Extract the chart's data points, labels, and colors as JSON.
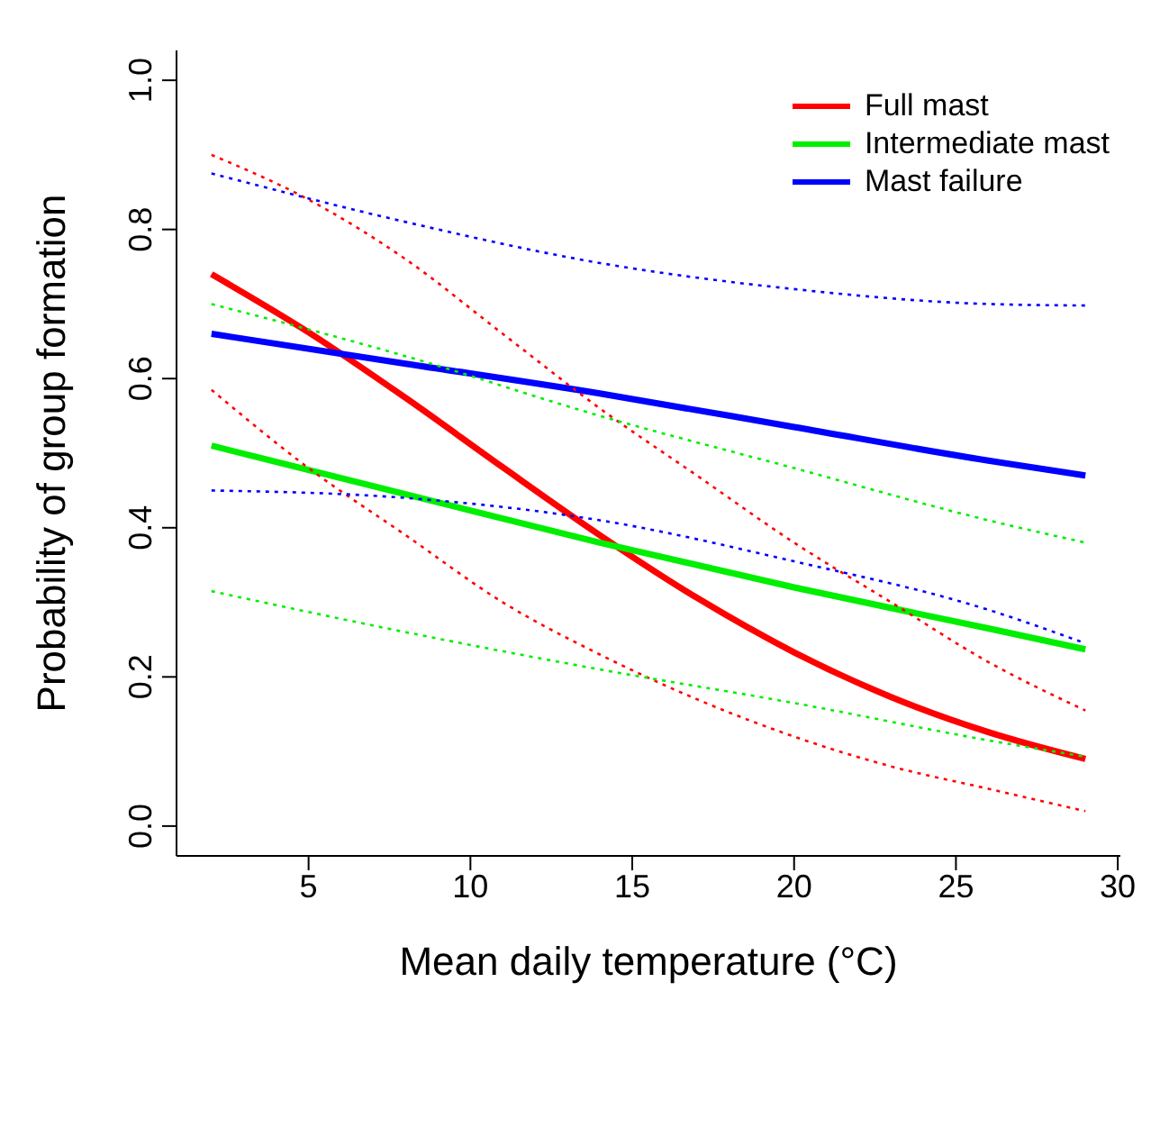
{
  "chart_data": {
    "type": "line",
    "xlabel": "Mean daily temperature (°C)",
    "ylabel": "Probability of group formation",
    "xlim": [
      0.92,
      30.08
    ],
    "xticks": [
      5,
      10,
      15,
      20,
      25,
      30
    ],
    "ylim": [
      -0.04,
      1.04
    ],
    "yticks": [
      {
        "value": 0,
        "label": "0.0"
      },
      0.2,
      0.4,
      0.6,
      0.8,
      {
        "value": 1,
        "label": "1.0"
      }
    ],
    "grid": false,
    "legend": "top right",
    "marker": "none",
    "series": [
      {
        "name": "Full mast",
        "color": "#ff0000",
        "line_style": "solid",
        "x": [
          2,
          5,
          8,
          11,
          14,
          17,
          20,
          23,
          26,
          29
        ],
        "values": [
          0.74,
          0.662,
          0.574,
          0.481,
          0.39,
          0.306,
          0.233,
          0.173,
          0.126,
          0.09
        ]
      },
      {
        "name": "Intermediate mast",
        "color": "#00ee00",
        "line_style": "solid",
        "x": [
          2,
          8,
          14,
          20,
          26,
          29
        ],
        "values": [
          0.51,
          0.445,
          0.38,
          0.32,
          0.265,
          0.237
        ]
      },
      {
        "name": "Mast failure",
        "color": "#0000ff",
        "line_style": "solid",
        "x": [
          2,
          8,
          14,
          20,
          26,
          29
        ],
        "values": [
          0.66,
          0.62,
          0.58,
          0.535,
          0.49,
          0.47
        ]
      },
      {
        "color": "#ff0000",
        "line_style": "dotted",
        "x": [
          2,
          5,
          8,
          11,
          14,
          17,
          20,
          23,
          26,
          29
        ],
        "values": [
          0.9,
          0.84,
          0.76,
          0.66,
          0.56,
          0.47,
          0.38,
          0.3,
          0.22,
          0.155
        ]
      },
      {
        "color": "#ff0000",
        "line_style": "dotted",
        "x": [
          2,
          5,
          8,
          11,
          14,
          17,
          20,
          23,
          26,
          29
        ],
        "values": [
          0.585,
          0.48,
          0.39,
          0.3,
          0.23,
          0.17,
          0.12,
          0.08,
          0.05,
          0.02
        ]
      },
      {
        "color": "#00ee00",
        "line_style": "dotted",
        "x": [
          2,
          8,
          14,
          20,
          26,
          29
        ],
        "values": [
          0.7,
          0.63,
          0.55,
          0.48,
          0.41,
          0.38
        ]
      },
      {
        "color": "#00ee00",
        "line_style": "dotted",
        "x": [
          2,
          8,
          14,
          20,
          26,
          29
        ],
        "values": [
          0.315,
          0.26,
          0.21,
          0.165,
          0.115,
          0.093
        ]
      },
      {
        "color": "#0000ff",
        "line_style": "dotted",
        "x": [
          2,
          8,
          14,
          20,
          26,
          29
        ],
        "values": [
          0.875,
          0.81,
          0.755,
          0.72,
          0.7,
          0.698
        ]
      },
      {
        "color": "#0000ff",
        "line_style": "dotted",
        "x": [
          2,
          8,
          14,
          20,
          26,
          29
        ],
        "values": [
          0.45,
          0.44,
          0.41,
          0.355,
          0.29,
          0.245
        ]
      }
    ]
  }
}
